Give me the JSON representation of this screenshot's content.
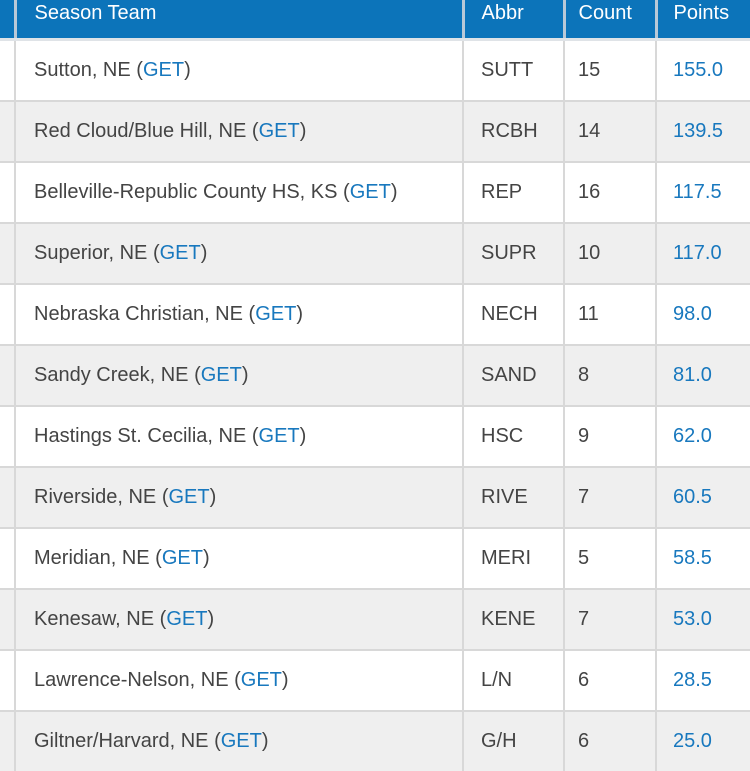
{
  "theme": {
    "header_bg": "#0c74ba",
    "header_text": "#ffffff",
    "link_color": "#1878be",
    "alt_row_bg": "#efefef",
    "border_color": "#d8d8d8",
    "text_color": "#444444"
  },
  "table": {
    "columns": [
      {
        "label": "Season Team"
      },
      {
        "label": "Abbr"
      },
      {
        "label": "Count"
      },
      {
        "label": "Points"
      }
    ],
    "get_link": {
      "open": "(",
      "label": "GET",
      "close": ")"
    },
    "rows": [
      {
        "team": "Sutton, NE",
        "abbr": "SUTT",
        "count": "15",
        "points": "155.0"
      },
      {
        "team": "Red Cloud/Blue Hill, NE",
        "abbr": "RCBH",
        "count": "14",
        "points": "139.5"
      },
      {
        "team": "Belleville-Republic County HS, KS",
        "abbr": "REP",
        "count": "16",
        "points": "117.5"
      },
      {
        "team": "Superior, NE",
        "abbr": "SUPR",
        "count": "10",
        "points": "117.0"
      },
      {
        "team": "Nebraska Christian, NE",
        "abbr": "NECH",
        "count": "11",
        "points": "98.0"
      },
      {
        "team": "Sandy Creek, NE",
        "abbr": "SAND",
        "count": "8",
        "points": "81.0"
      },
      {
        "team": "Hastings St. Cecilia, NE",
        "abbr": "HSC",
        "count": "9",
        "points": "62.0"
      },
      {
        "team": "Riverside, NE",
        "abbr": "RIVE",
        "count": "7",
        "points": "60.5"
      },
      {
        "team": "Meridian, NE",
        "abbr": "MERI",
        "count": "5",
        "points": "58.5"
      },
      {
        "team": "Kenesaw, NE",
        "abbr": "KENE",
        "count": "7",
        "points": "53.0"
      },
      {
        "team": "Lawrence-Nelson, NE",
        "abbr": "L/N",
        "count": "6",
        "points": "28.5"
      },
      {
        "team": "Giltner/Harvard, NE",
        "abbr": "G/H",
        "count": "6",
        "points": "25.0"
      }
    ]
  }
}
